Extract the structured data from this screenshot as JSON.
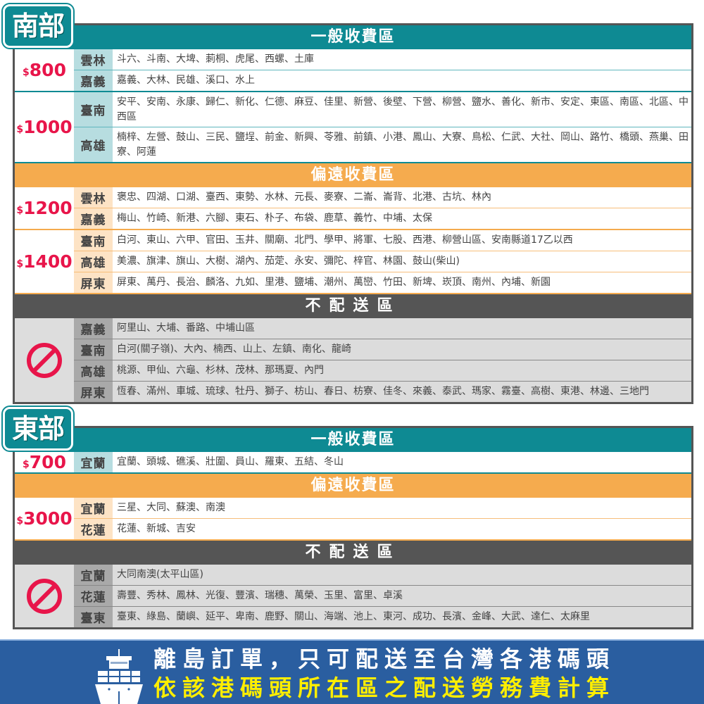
{
  "south": {
    "tag": "南部",
    "blocks": [
      {
        "type": "general",
        "header": "一般收費區",
        "groups": [
          {
            "currency": "$",
            "amount": "800",
            "rows": [
              {
                "region": "雲林",
                "towns": "斗六、斗南、大埤、莿桐、虎尾、西螺、土庫"
              },
              {
                "region": "嘉義",
                "towns": "嘉義、大林、民雄、溪口、水上"
              }
            ]
          },
          {
            "currency": "$",
            "amount": "1000",
            "rows": [
              {
                "region": "臺南",
                "towns": "安平、安南、永康、歸仁、新化、仁德、麻豆、佳里、新營、後壁、下營、柳營、鹽水、善化、新市、安定、東區、南區、北區、中西區"
              },
              {
                "region": "高雄",
                "towns": "楠梓、左營、鼓山、三民、鹽埕、前金、新興、苓雅、前鎮、小港、鳳山、大寮、鳥松、仁武、大社、岡山、路竹、橋頭、燕巢、田寮、阿蓮"
              }
            ]
          }
        ]
      },
      {
        "type": "remote",
        "header": "偏遠收費區",
        "groups": [
          {
            "currency": "$",
            "amount": "1200",
            "rows": [
              {
                "region": "雲林",
                "towns": "褒忠、四湖、口湖、臺西、東勢、水林、元長、麥寮、二崙、崙背、北港、古坑、林內"
              },
              {
                "region": "嘉義",
                "towns": "梅山、竹崎、新港、六腳、東石、朴子、布袋、鹿草、義竹、中埔、太保"
              }
            ]
          },
          {
            "currency": "$",
            "amount": "1400",
            "rows": [
              {
                "region": "臺南",
                "towns": "白河、東山、六甲、官田、玉井、關廟、北門、學甲、將軍、七股、西港、柳營山區、安南縣道17乙以西"
              },
              {
                "region": "高雄",
                "towns": "美濃、旗津、旗山、大樹、湖內、茄萣、永安、彌陀、梓官、林園、鼓山(柴山)"
              },
              {
                "region": "屏東",
                "towns": "屏東、萬丹、長治、麟洛、九如、里港、鹽埔、潮州、萬巒、竹田、新埤、崁頂、南州、內埔、新園"
              }
            ]
          }
        ]
      },
      {
        "type": "none",
        "header": "不配送區",
        "groups": [
          {
            "icon": "no-entry-icon",
            "rows": [
              {
                "region": "嘉義",
                "towns": "阿里山、大埔、番路、中埔山區"
              },
              {
                "region": "臺南",
                "towns": "白河(關子嶺)、大內、楠西、山上、左鎮、南化、龍崎"
              },
              {
                "region": "高雄",
                "towns": "桃源、甲仙、六龜、杉林、茂林、那瑪夏、內門"
              },
              {
                "region": "屏東",
                "towns": "恆春、滿州、車城、琉球、牡丹、獅子、枋山、春日、枋寮、佳冬、來義、泰武、瑪家、霧臺、高樹、東港、林邊、三地門"
              }
            ]
          }
        ]
      }
    ]
  },
  "east": {
    "tag": "東部",
    "blocks": [
      {
        "type": "general",
        "header": "一般收費區",
        "groups": [
          {
            "currency": "$",
            "amount": "700",
            "rows": [
              {
                "region": "宜蘭",
                "towns": "宜蘭、頭城、礁溪、壯圍、員山、羅東、五結、冬山"
              }
            ]
          }
        ]
      },
      {
        "type": "remote",
        "header": "偏遠收費區",
        "groups": [
          {
            "currency": "$",
            "amount": "3000",
            "rows": [
              {
                "region": "宜蘭",
                "towns": "三星、大同、蘇澳、南澳"
              },
              {
                "region": "花蓮",
                "towns": "花蓮、新城、吉安"
              }
            ]
          }
        ]
      },
      {
        "type": "none",
        "header": "不配送區",
        "groups": [
          {
            "icon": "no-entry-icon",
            "rows": [
              {
                "region": "宜蘭",
                "towns": "大同南澳(太平山區)"
              },
              {
                "region": "花蓮",
                "towns": "壽豐、秀林、鳳林、光復、豐濱、瑞穗、萬榮、玉里、富里、卓溪"
              },
              {
                "region": "臺東",
                "towns": "臺東、綠島、蘭嶼、延平、卑南、鹿野、關山、海端、池上、東河、成功、長濱、金峰、大武、達仁、太麻里"
              }
            ]
          }
        ]
      }
    ]
  },
  "banner": {
    "line1": "離島訂單，只可配送至台灣各港碼頭",
    "line2": "依該港碼頭所在區之配送勞務費計算",
    "icon": "cargo-ship-icon"
  },
  "colors": {
    "general": "#0e8a93",
    "remote": "#f5ab4e",
    "none": "#555555",
    "price": "#e8154a",
    "banner": "#2a5ea0",
    "banner_highlight": "#ffee00"
  }
}
